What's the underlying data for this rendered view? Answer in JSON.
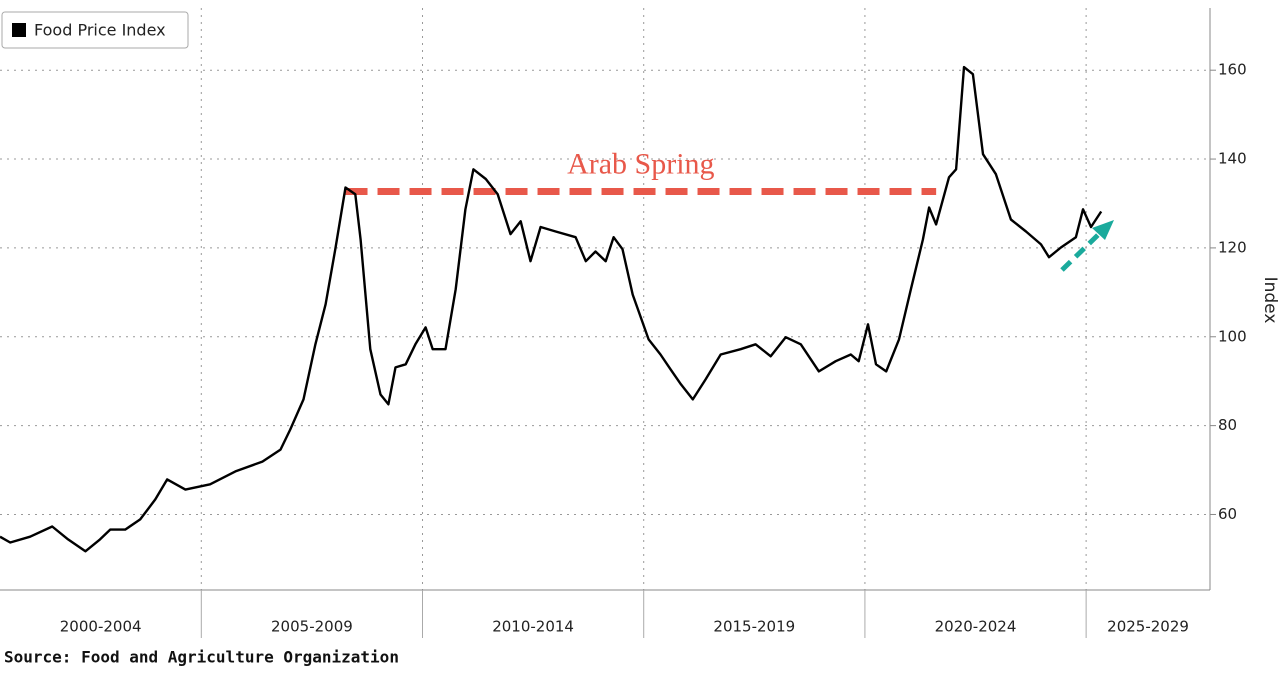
{
  "chart_data": {
    "type": "line",
    "series": [
      {
        "name": "Food Price Index",
        "color": "#000000",
        "x": [
          2000.45,
          2000.68,
          2001.13,
          2001.63,
          2001.99,
          2002.38,
          2002.71,
          2002.94,
          2003.28,
          2003.62,
          2003.96,
          2004.23,
          2004.64,
          2005.2,
          2005.77,
          2006.38,
          2006.79,
          2007.01,
          2007.31,
          2007.58,
          2007.81,
          2008.03,
          2008.26,
          2008.48,
          2008.6,
          2008.82,
          2009.05,
          2009.23,
          2009.39,
          2009.62,
          2009.84,
          2010.07,
          2010.23,
          2010.52,
          2010.75,
          2010.97,
          2011.15,
          2011.43,
          2011.7,
          2011.99,
          2012.22,
          2012.44,
          2012.67,
          2013.01,
          2013.46,
          2013.69,
          2013.91,
          2014.14,
          2014.32,
          2014.52,
          2014.75,
          2015.11,
          2015.38,
          2015.61,
          2015.84,
          2016.11,
          2016.4,
          2016.74,
          2017.19,
          2017.53,
          2017.87,
          2018.21,
          2018.55,
          2018.96,
          2019.34,
          2019.68,
          2019.86,
          2020.07,
          2020.25,
          2020.48,
          2020.77,
          2021.04,
          2021.31,
          2021.45,
          2021.61,
          2021.9,
          2022.06,
          2022.24,
          2022.44,
          2022.67,
          2022.96,
          2023.3,
          2023.64,
          2023.98,
          2024.16,
          2024.43,
          2024.77,
          2024.93,
          2025.11,
          2025.34
        ],
        "values": [
          55.0,
          53.7,
          55.0,
          57.3,
          54.4,
          51.7,
          54.4,
          56.6,
          56.6,
          58.9,
          63.4,
          67.9,
          65.6,
          66.8,
          69.7,
          71.9,
          74.6,
          79.1,
          85.9,
          98.3,
          107.3,
          119.7,
          133.6,
          132.1,
          121.9,
          97.2,
          87.0,
          84.8,
          93.1,
          93.8,
          98.3,
          102.1,
          97.2,
          97.2,
          110.7,
          128.7,
          137.7,
          135.5,
          132.1,
          123.1,
          126.0,
          117.0,
          124.7,
          123.7,
          122.4,
          117.0,
          119.2,
          117.0,
          122.4,
          119.7,
          109.5,
          99.4,
          96.0,
          92.6,
          89.3,
          85.9,
          90.4,
          96.0,
          97.2,
          98.3,
          95.6,
          99.9,
          98.3,
          92.2,
          94.5,
          96.0,
          94.5,
          102.8,
          93.8,
          92.2,
          99.4,
          110.7,
          121.9,
          129.1,
          125.3,
          135.9,
          137.7,
          160.7,
          159.1,
          141.1,
          136.6,
          126.4,
          123.7,
          120.8,
          117.9,
          120.1,
          122.4,
          128.7,
          124.7,
          128.2
        ]
      }
    ],
    "xlim": [
      2000.45,
      2027.8
    ],
    "xticks": [
      2005,
      2010,
      2015,
      2020,
      2025
    ],
    "x_bands": [
      {
        "label": "2000-2004",
        "start": 2000,
        "end": 2005
      },
      {
        "label": "2005-2009",
        "start": 2005,
        "end": 2010
      },
      {
        "label": "2010-2014",
        "start": 2010,
        "end": 2015
      },
      {
        "label": "2015-2019",
        "start": 2015,
        "end": 2020
      },
      {
        "label": "2020-2024",
        "start": 2020,
        "end": 2025
      },
      {
        "label": "2025-2029",
        "start": 2025,
        "end": 2030
      }
    ],
    "ylim": [
      43,
      174
    ],
    "yticks": [
      60,
      80,
      100,
      120,
      140,
      160
    ],
    "y_label": "Index",
    "grid": true,
    "legend": "top-left",
    "annotation": {
      "text": "Arab Spring",
      "color": "#e8584a",
      "y": 132.7,
      "x": [
        2008.26,
        2021.61
      ]
    },
    "source": "Source: Food and Agriculture Organization"
  }
}
